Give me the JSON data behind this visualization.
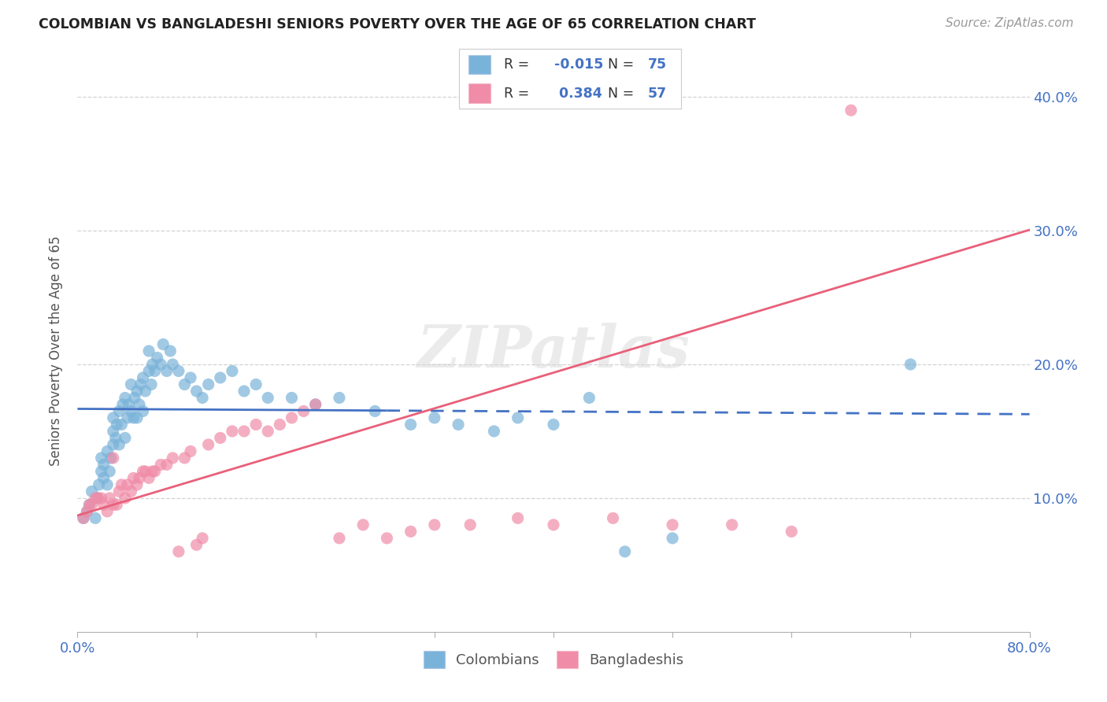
{
  "title": "COLOMBIAN VS BANGLADESHI SENIORS POVERTY OVER THE AGE OF 65 CORRELATION CHART",
  "source": "Source: ZipAtlas.com",
  "ylabel": "Seniors Poverty Over the Age of 65",
  "yticks": [
    "10.0%",
    "20.0%",
    "30.0%",
    "40.0%"
  ],
  "ytick_vals": [
    0.1,
    0.2,
    0.3,
    0.4
  ],
  "colombian_color": "#7ab3d9",
  "bangladeshi_color": "#f08ca8",
  "colombian_line_color": "#4472c4",
  "bangladeshi_line_color": "#e8607a",
  "watermark": "ZIPatlas",
  "R_colombian": -0.015,
  "R_bangladeshi": 0.384,
  "N_colombian": 75,
  "N_bangladeshi": 57,
  "xlim": [
    0.0,
    0.8
  ],
  "ylim": [
    0.0,
    0.42
  ],
  "colombians_x": [
    0.005,
    0.008,
    0.01,
    0.012,
    0.015,
    0.017,
    0.018,
    0.02,
    0.02,
    0.022,
    0.022,
    0.025,
    0.025,
    0.027,
    0.028,
    0.03,
    0.03,
    0.03,
    0.032,
    0.033,
    0.035,
    0.035,
    0.037,
    0.038,
    0.04,
    0.04,
    0.042,
    0.043,
    0.045,
    0.045,
    0.047,
    0.048,
    0.05,
    0.05,
    0.052,
    0.053,
    0.055,
    0.055,
    0.057,
    0.06,
    0.06,
    0.062,
    0.063,
    0.065,
    0.067,
    0.07,
    0.072,
    0.075,
    0.078,
    0.08,
    0.085,
    0.09,
    0.095,
    0.1,
    0.105,
    0.11,
    0.12,
    0.13,
    0.14,
    0.15,
    0.16,
    0.18,
    0.2,
    0.22,
    0.25,
    0.28,
    0.3,
    0.32,
    0.35,
    0.37,
    0.4,
    0.43,
    0.46,
    0.5,
    0.7
  ],
  "colombians_y": [
    0.085,
    0.09,
    0.095,
    0.105,
    0.085,
    0.1,
    0.11,
    0.12,
    0.13,
    0.115,
    0.125,
    0.11,
    0.135,
    0.12,
    0.13,
    0.14,
    0.15,
    0.16,
    0.145,
    0.155,
    0.14,
    0.165,
    0.155,
    0.17,
    0.145,
    0.175,
    0.16,
    0.17,
    0.165,
    0.185,
    0.16,
    0.175,
    0.16,
    0.18,
    0.17,
    0.185,
    0.165,
    0.19,
    0.18,
    0.195,
    0.21,
    0.185,
    0.2,
    0.195,
    0.205,
    0.2,
    0.215,
    0.195,
    0.21,
    0.2,
    0.195,
    0.185,
    0.19,
    0.18,
    0.175,
    0.185,
    0.19,
    0.195,
    0.18,
    0.185,
    0.175,
    0.175,
    0.17,
    0.175,
    0.165,
    0.155,
    0.16,
    0.155,
    0.15,
    0.16,
    0.155,
    0.175,
    0.06,
    0.07,
    0.2
  ],
  "bangladeshis_x": [
    0.005,
    0.008,
    0.01,
    0.012,
    0.015,
    0.017,
    0.02,
    0.022,
    0.025,
    0.027,
    0.03,
    0.03,
    0.033,
    0.035,
    0.037,
    0.04,
    0.042,
    0.045,
    0.047,
    0.05,
    0.052,
    0.055,
    0.057,
    0.06,
    0.063,
    0.065,
    0.07,
    0.075,
    0.08,
    0.085,
    0.09,
    0.095,
    0.1,
    0.105,
    0.11,
    0.12,
    0.13,
    0.14,
    0.15,
    0.16,
    0.17,
    0.18,
    0.19,
    0.2,
    0.22,
    0.24,
    0.26,
    0.28,
    0.3,
    0.33,
    0.37,
    0.4,
    0.45,
    0.5,
    0.55,
    0.6,
    0.65
  ],
  "bangladeshis_y": [
    0.085,
    0.09,
    0.095,
    0.095,
    0.1,
    0.1,
    0.1,
    0.095,
    0.09,
    0.1,
    0.095,
    0.13,
    0.095,
    0.105,
    0.11,
    0.1,
    0.11,
    0.105,
    0.115,
    0.11,
    0.115,
    0.12,
    0.12,
    0.115,
    0.12,
    0.12,
    0.125,
    0.125,
    0.13,
    0.06,
    0.13,
    0.135,
    0.065,
    0.07,
    0.14,
    0.145,
    0.15,
    0.15,
    0.155,
    0.15,
    0.155,
    0.16,
    0.165,
    0.17,
    0.07,
    0.08,
    0.07,
    0.075,
    0.08,
    0.08,
    0.085,
    0.08,
    0.085,
    0.08,
    0.08,
    0.075,
    0.39
  ]
}
